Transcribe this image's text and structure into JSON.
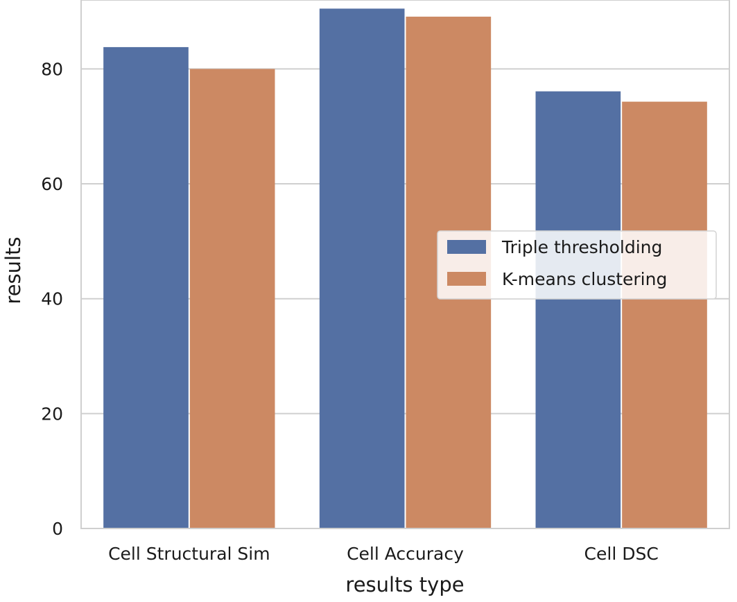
{
  "chart_data": {
    "type": "bar",
    "categories": [
      "Cell Structural Sim",
      "Cell Accuracy",
      "Cell DSC"
    ],
    "series": [
      {
        "name": "Triple thresholding",
        "color": "#5470a3",
        "values": [
          83.8,
          90.5,
          76.1
        ]
      },
      {
        "name": "K-means clustering",
        "color": "#cc8963",
        "values": [
          80.0,
          89.1,
          74.3
        ]
      }
    ],
    "xlabel": "results type",
    "ylabel": "results",
    "ylim": [
      0,
      92
    ],
    "yticks": [
      0,
      20,
      40,
      60,
      80
    ],
    "ytick_labels": [
      "0",
      "20",
      "40",
      "60",
      "80"
    ],
    "grid": true,
    "legend_position": "center-right"
  }
}
